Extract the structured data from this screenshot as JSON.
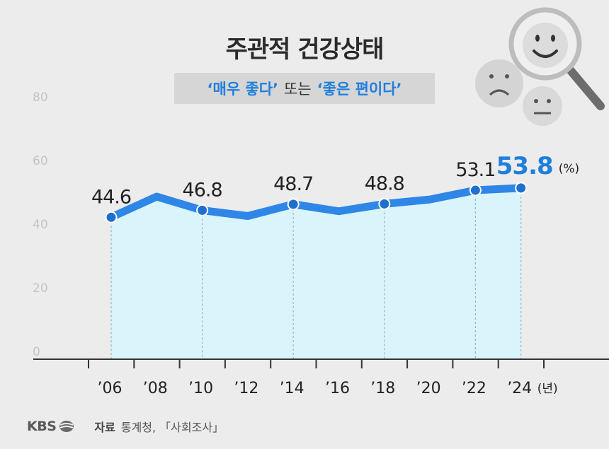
{
  "title": "주관적 건강상태",
  "subtitle": {
    "part1": "‘매우 좋다’",
    "part2": "또는",
    "part3": "‘좋은 편이다’"
  },
  "chart_data": {
    "type": "area",
    "x": [
      2006,
      2008,
      2010,
      2012,
      2014,
      2016,
      2018,
      2020,
      2022,
      2024
    ],
    "categories": [
      "’06",
      "’08",
      "’10",
      "’12",
      "’14",
      "’16",
      "’18",
      "’20",
      "’22",
      "’24"
    ],
    "values": [
      44.6,
      51.1,
      46.8,
      45.0,
      48.7,
      46.5,
      48.8,
      50.2,
      53.1,
      53.8
    ],
    "data_labels": [
      {
        "x": 2006,
        "label": "44.6"
      },
      {
        "x": 2010,
        "label": "46.8"
      },
      {
        "x": 2014,
        "label": "48.7"
      },
      {
        "x": 2018,
        "label": "48.8"
      },
      {
        "x": 2022,
        "label": "53.1"
      },
      {
        "x": 2024,
        "label": "53.8"
      }
    ],
    "marker_years": [
      2006,
      2010,
      2014,
      2018,
      2022,
      2024
    ],
    "y_ticks": [
      "0",
      "20",
      "40",
      "60",
      "80"
    ],
    "ylim": [
      0,
      80
    ],
    "value_unit": "(%)",
    "x_unit": "(년)",
    "line_color": "#2e86e6",
    "fill_color": "#d9f4fa",
    "highlight_color": "#1f7fdc",
    "grid": false
  },
  "footer": {
    "logo": "KBS",
    "source_label": "자료",
    "source_text": "통계청, 「사회조사」"
  }
}
